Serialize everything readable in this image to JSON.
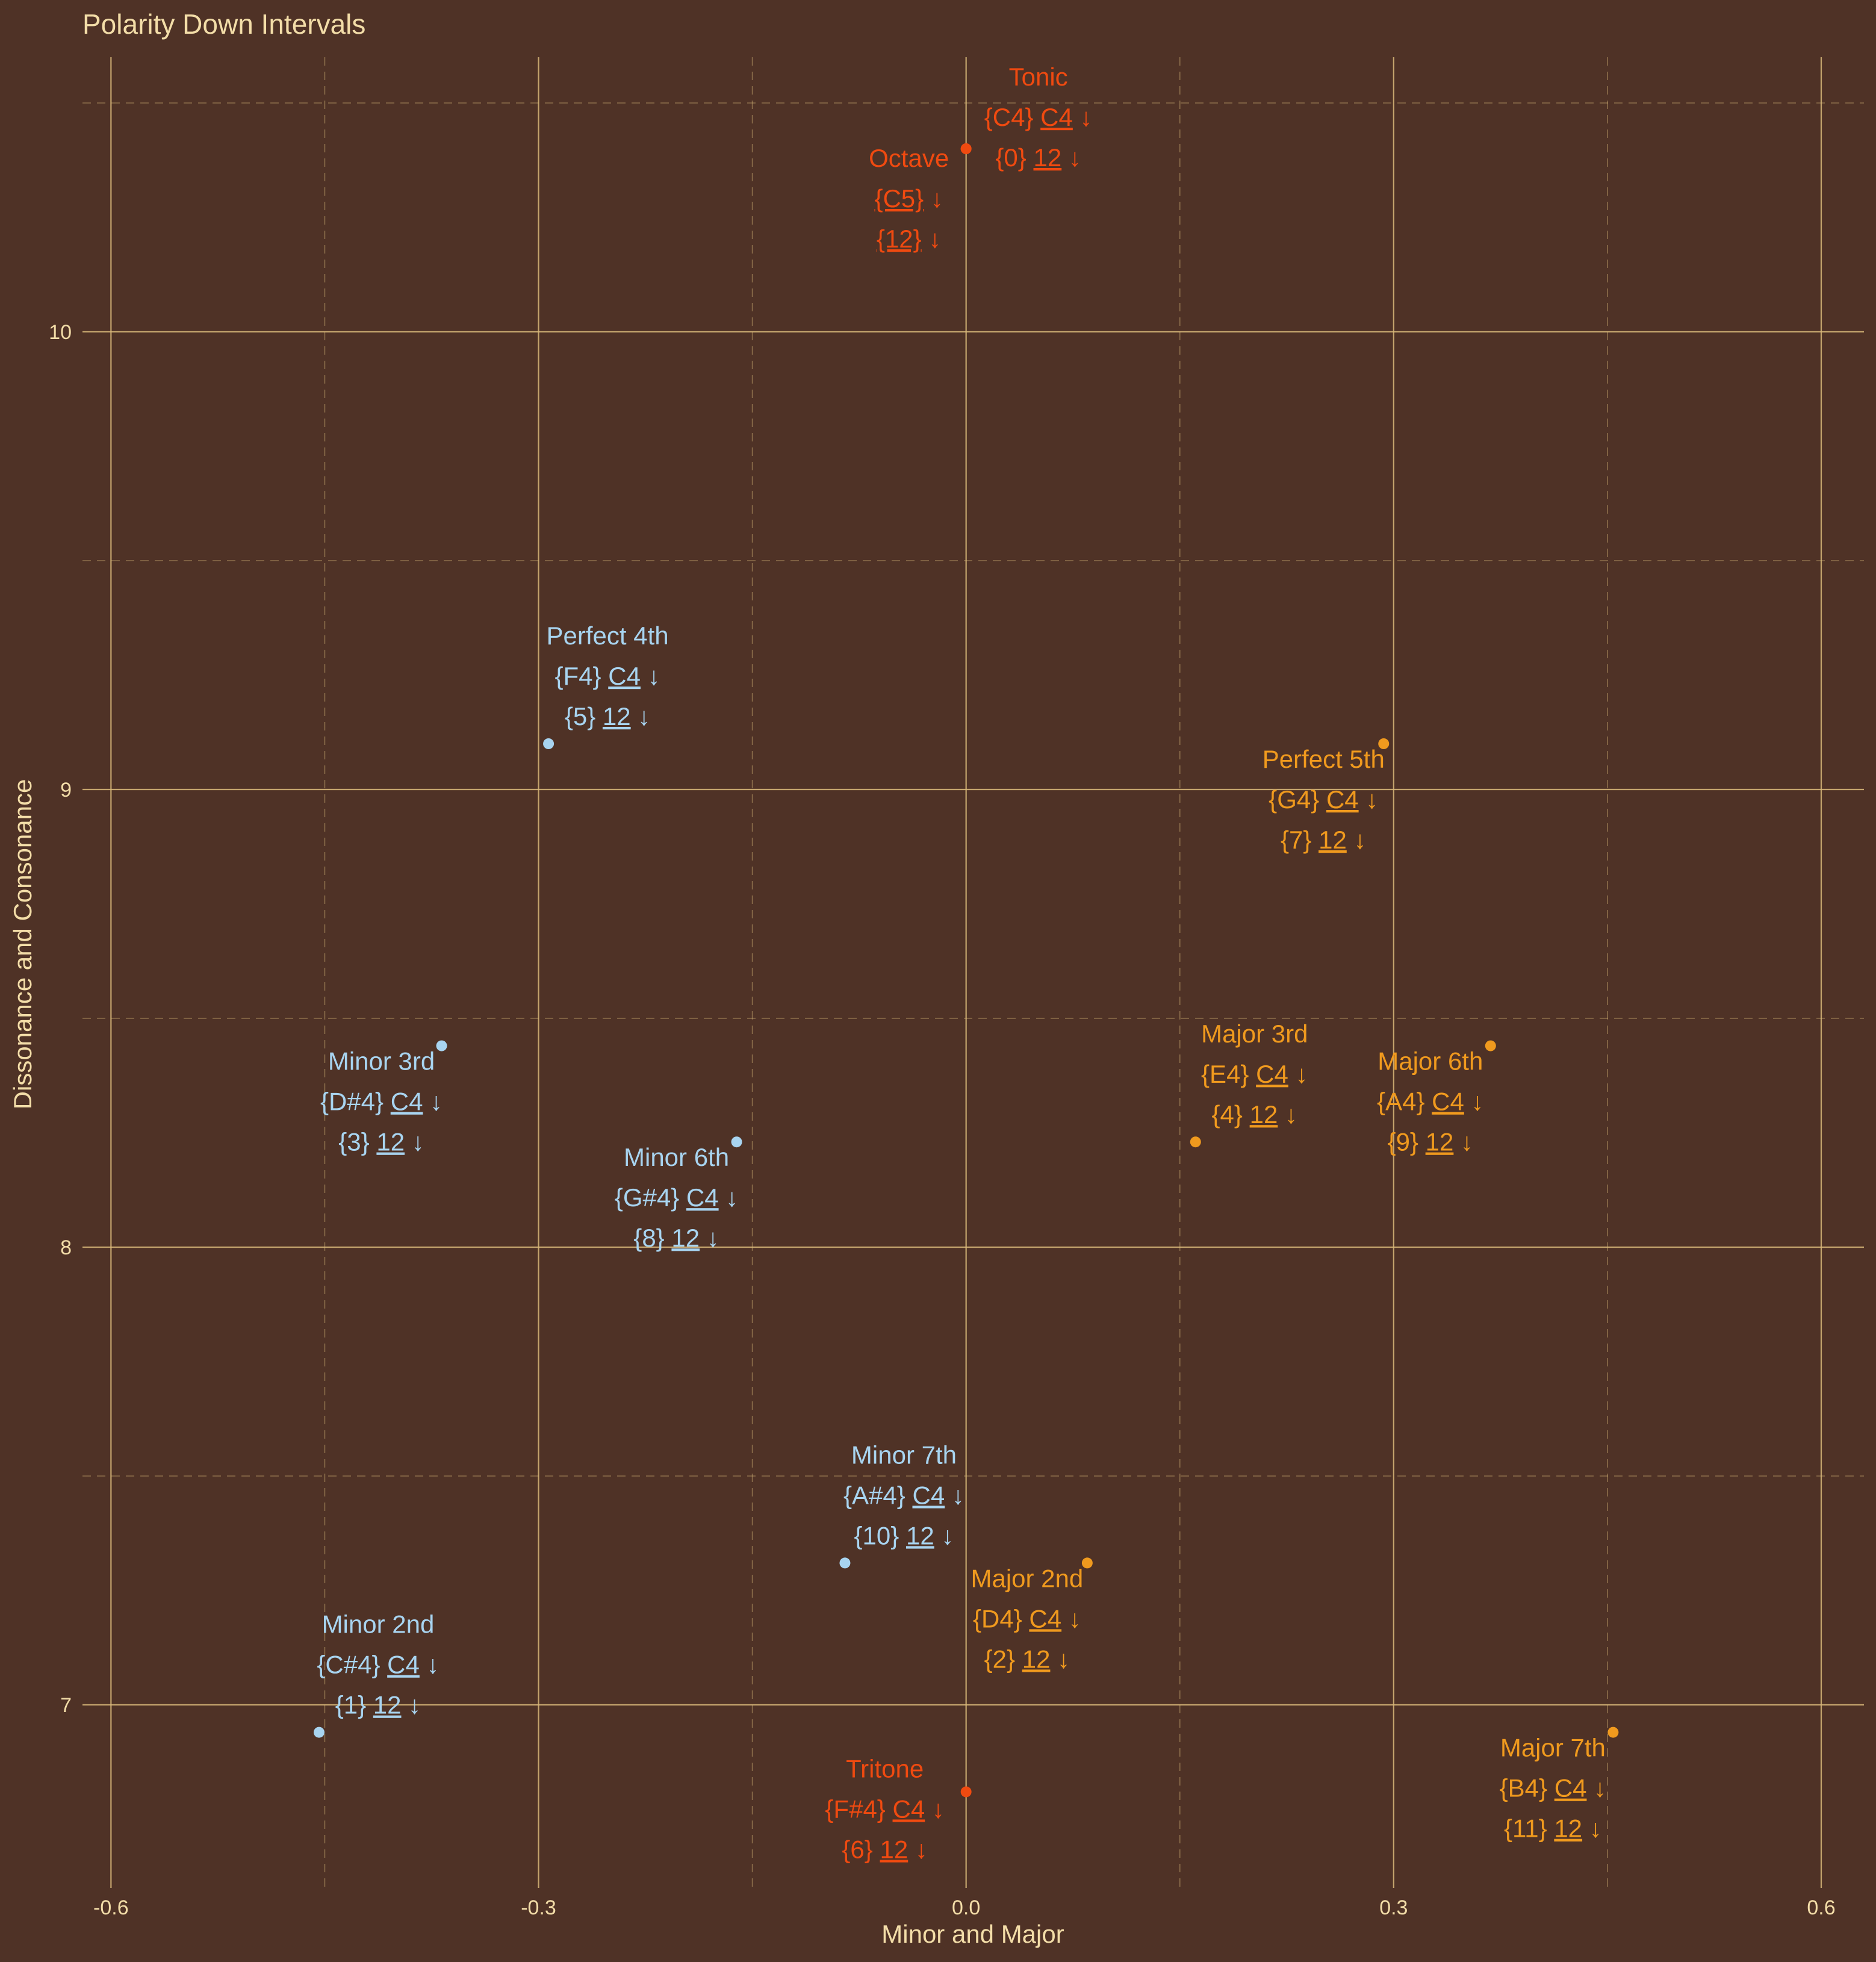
{
  "colors": {
    "background": "#4f3226",
    "grid": "#d9b97a",
    "text": "#f3dda8",
    "minor": "#a8d4f0",
    "major": "#f09a1e",
    "perfect": "#f04a10"
  },
  "chart_data": {
    "type": "scatter",
    "title": "Polarity Down Intervals",
    "xlabel": "Minor and Major",
    "ylabel": "Dissonance and Consonance",
    "xlim": [
      -0.62,
      0.63
    ],
    "ylim": [
      6.6,
      10.6
    ],
    "x_ticks": [
      -0.6,
      -0.3,
      0.0,
      0.3,
      0.6
    ],
    "x_tick_labels": [
      "-0.6",
      "-0.3",
      "0.0",
      "0.3",
      "0.6"
    ],
    "x_minor": [
      -0.45,
      -0.15,
      0.15,
      0.45
    ],
    "y_ticks": [
      7,
      8,
      9,
      10
    ],
    "y_tick_labels": [
      "7",
      "8",
      "9",
      "10"
    ],
    "y_minor": [
      7.5,
      8.5,
      9.5,
      10.5
    ],
    "grid": true,
    "points": [
      {
        "name": "Tonic",
        "x": 0.0,
        "y": 10.4,
        "group": "perfect",
        "line1": "{C4}",
        "line1u": "C4",
        "line2": "{0}",
        "line2u": "12",
        "arrow": "↓"
      },
      {
        "name": "Octave",
        "x": 0.0,
        "y": 10.4,
        "group": "perfect",
        "line1": "",
        "line1u": "{C5}",
        "line2": "",
        "line2u": "{12}",
        "arrow": "↓"
      },
      {
        "name": "Perfect 4th",
        "x": -0.293,
        "y": 9.1,
        "group": "minor",
        "line1": "{F4}",
        "line1u": "C4",
        "line2": "{5}",
        "line2u": "12",
        "arrow": "↓"
      },
      {
        "name": "Perfect 5th",
        "x": 0.293,
        "y": 9.1,
        "group": "major",
        "line1": "{G4}",
        "line1u": "C4",
        "line2": "{7}",
        "line2u": "12",
        "arrow": "↓"
      },
      {
        "name": "Minor 3rd",
        "x": -0.368,
        "y": 8.44,
        "group": "minor",
        "line1": "{D#4}",
        "line1u": "C4",
        "line2": "{3}",
        "line2u": "12",
        "arrow": "↓"
      },
      {
        "name": "Major 6th",
        "x": 0.368,
        "y": 8.44,
        "group": "major",
        "line1": "{A4}",
        "line1u": "C4",
        "line2": "{9}",
        "line2u": "12",
        "arrow": "↓"
      },
      {
        "name": "Minor 6th",
        "x": -0.161,
        "y": 8.23,
        "group": "minor",
        "line1": "{G#4}",
        "line1u": "C4",
        "line2": "{8}",
        "line2u": "12",
        "arrow": "↓"
      },
      {
        "name": "Major 3rd",
        "x": 0.161,
        "y": 8.23,
        "group": "major",
        "line1": "{E4}",
        "line1u": "C4",
        "line2": "{4}",
        "line2u": "12",
        "arrow": "↓"
      },
      {
        "name": "Minor 7th",
        "x": -0.085,
        "y": 7.31,
        "group": "minor",
        "line1": "{A#4}",
        "line1u": "C4",
        "line2": "{10}",
        "line2u": "12",
        "arrow": "↓"
      },
      {
        "name": "Major 2nd",
        "x": 0.085,
        "y": 7.31,
        "group": "major",
        "line1": "{D4}",
        "line1u": "C4",
        "line2": "{2}",
        "line2u": "12",
        "arrow": "↓"
      },
      {
        "name": "Minor 2nd",
        "x": -0.454,
        "y": 6.94,
        "group": "minor",
        "line1": "{C#4}",
        "line1u": "C4",
        "line2": "{1}",
        "line2u": "12",
        "arrow": "↓"
      },
      {
        "name": "Major 7th",
        "x": 0.454,
        "y": 6.94,
        "group": "major",
        "line1": "{B4}",
        "line1u": "C4",
        "line2": "{11}",
        "line2u": "12",
        "arrow": "↓"
      },
      {
        "name": "Tritone",
        "x": 0.0,
        "y": 6.81,
        "group": "perfect",
        "line1": "{F#4}",
        "line1u": "C4",
        "line2": "{6}",
        "line2u": "12",
        "arrow": "↓"
      }
    ]
  }
}
